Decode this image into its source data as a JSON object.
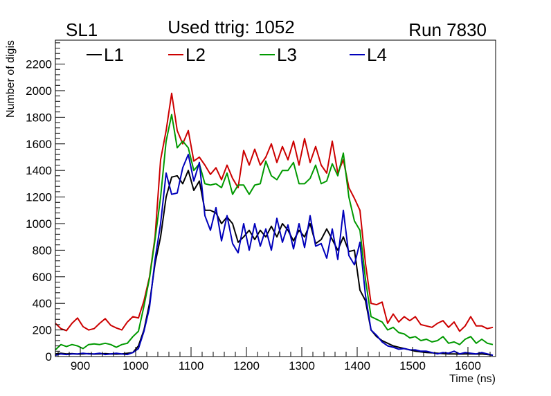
{
  "header": {
    "left": "SL1",
    "center": "Used ttrig: 1052",
    "right": "Run 7830"
  },
  "chart_data": {
    "type": "line",
    "xlabel": "Time (ns)",
    "ylabel": "Number of digis",
    "xlim": [
      855,
      1650
    ],
    "ylim": [
      0,
      2380
    ],
    "xticks": [
      900,
      1000,
      1100,
      1200,
      1300,
      1400,
      1500,
      1600
    ],
    "yticks": [
      0,
      200,
      400,
      600,
      800,
      1000,
      1200,
      1400,
      1600,
      1800,
      2000,
      2200
    ],
    "grid": false,
    "legend_position": "top-left",
    "x": [
      855,
      865,
      875,
      885,
      895,
      905,
      915,
      925,
      935,
      945,
      955,
      965,
      975,
      985,
      995,
      1005,
      1015,
      1025,
      1035,
      1045,
      1055,
      1065,
      1075,
      1085,
      1095,
      1105,
      1115,
      1125,
      1135,
      1145,
      1155,
      1165,
      1175,
      1185,
      1195,
      1205,
      1215,
      1225,
      1235,
      1245,
      1255,
      1265,
      1275,
      1285,
      1295,
      1305,
      1315,
      1325,
      1335,
      1345,
      1355,
      1365,
      1375,
      1385,
      1395,
      1405,
      1415,
      1425,
      1435,
      1445,
      1455,
      1465,
      1475,
      1485,
      1495,
      1505,
      1515,
      1525,
      1535,
      1545,
      1555,
      1565,
      1575,
      1585,
      1595,
      1605,
      1615,
      1625,
      1635,
      1645
    ],
    "series": [
      {
        "name": "L1",
        "color": "#000000",
        "values": [
          20,
          25,
          20,
          22,
          18,
          20,
          22,
          18,
          20,
          22,
          20,
          18,
          20,
          25,
          30,
          80,
          200,
          400,
          700,
          900,
          1200,
          1350,
          1360,
          1300,
          1400,
          1250,
          1320,
          1100,
          1100,
          1080,
          1000,
          1050,
          1000,
          860,
          900,
          950,
          880,
          950,
          900,
          980,
          900,
          1000,
          950,
          870,
          950,
          900,
          1000,
          850,
          880,
          960,
          880,
          800,
          900,
          790,
          800,
          500,
          420,
          200,
          150,
          120,
          100,
          80,
          70,
          60,
          50,
          40,
          35,
          30,
          28,
          25,
          22,
          20,
          20,
          18,
          20,
          20,
          18,
          20,
          15,
          10
        ]
      },
      {
        "name": "L2",
        "color": "#cc0000",
        "values": [
          250,
          210,
          195,
          250,
          290,
          225,
          200,
          210,
          250,
          285,
          235,
          215,
          200,
          260,
          300,
          290,
          420,
          600,
          900,
          1480,
          1700,
          1980,
          1700,
          1600,
          1700,
          1470,
          1500,
          1440,
          1370,
          1420,
          1330,
          1440,
          1340,
          1270,
          1550,
          1440,
          1560,
          1440,
          1500,
          1600,
          1460,
          1580,
          1480,
          1620,
          1440,
          1640,
          1460,
          1580,
          1440,
          1380,
          1620,
          1380,
          1480,
          1270,
          1190,
          1100,
          700,
          400,
          390,
          410,
          250,
          320,
          260,
          300,
          270,
          300,
          240,
          230,
          220,
          250,
          270,
          220,
          260,
          190,
          230,
          300,
          230,
          230,
          210,
          220
        ]
      },
      {
        "name": "L3",
        "color": "#009900",
        "values": [
          50,
          90,
          75,
          90,
          80,
          60,
          90,
          95,
          90,
          100,
          90,
          70,
          90,
          100,
          150,
          190,
          380,
          590,
          880,
          1200,
          1620,
          1820,
          1570,
          1620,
          1570,
          1400,
          1450,
          1300,
          1290,
          1300,
          1270,
          1380,
          1220,
          1290,
          1290,
          1220,
          1290,
          1300,
          1470,
          1360,
          1330,
          1400,
          1400,
          1460,
          1300,
          1300,
          1340,
          1440,
          1300,
          1320,
          1450,
          1360,
          1530,
          1200,
          1020,
          950,
          580,
          300,
          280,
          260,
          200,
          220,
          180,
          170,
          140,
          150,
          120,
          130,
          110,
          120,
          150,
          100,
          110,
          90,
          130,
          150,
          100,
          130,
          100,
          90
        ]
      },
      {
        "name": "L4",
        "color": "#0000bb",
        "values": [
          10,
          20,
          15,
          20,
          20,
          25,
          20,
          20,
          25,
          15,
          20,
          25,
          20,
          15,
          30,
          60,
          190,
          370,
          730,
          1000,
          1380,
          1220,
          1230,
          1420,
          1520,
          1320,
          1460,
          1060,
          950,
          1120,
          870,
          1060,
          850,
          780,
          1000,
          800,
          1000,
          830,
          960,
          800,
          1040,
          860,
          990,
          810,
          1000,
          820,
          1060,
          830,
          850,
          740,
          960,
          730,
          1100,
          760,
          690,
          860,
          460,
          200,
          160,
          110,
          80,
          70,
          55,
          60,
          50,
          50,
          40,
          40,
          30,
          20,
          30,
          25,
          40,
          20,
          30,
          25,
          20,
          30,
          20,
          10
        ]
      }
    ]
  }
}
